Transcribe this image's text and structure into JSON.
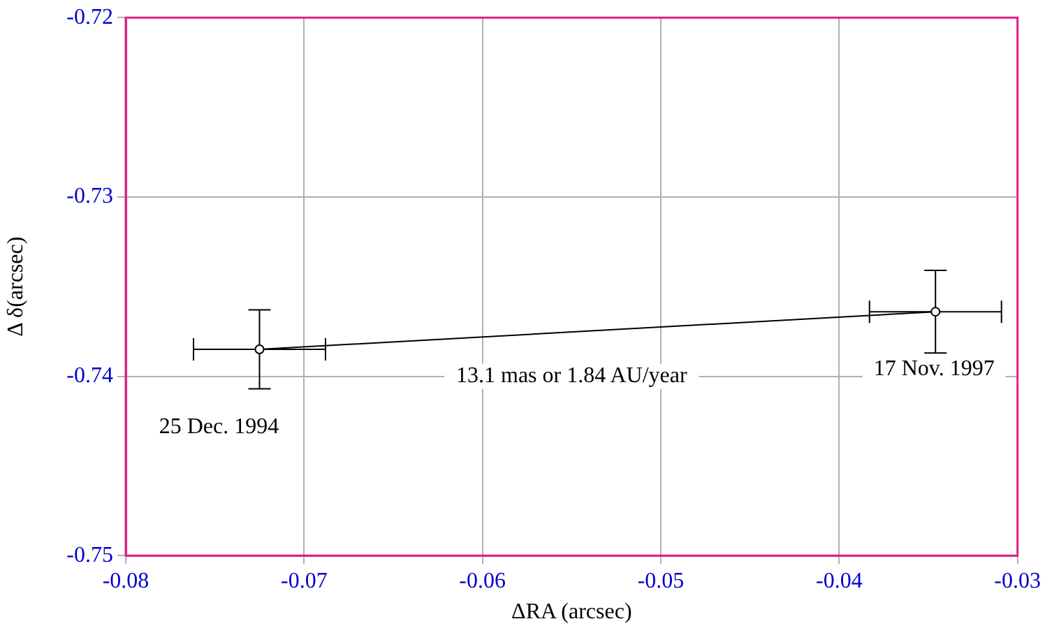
{
  "chart_data": {
    "type": "line",
    "xlabel": "ΔRA (arcsec)",
    "ylabel": "Δ δ(arcsec)",
    "x": [
      -0.0725,
      -0.0346
    ],
    "values": [
      -0.7385,
      -0.7364
    ],
    "errors": [
      0.0022,
      0.0023
    ],
    "xerrors": [
      0.0037,
      0.0037
    ],
    "color": "#000000",
    "marker": "circle",
    "line_style": "solid",
    "xlim": [
      -0.08,
      -0.03
    ],
    "xticks": [
      -0.08,
      -0.07,
      -0.06,
      -0.05,
      -0.04,
      -0.03
    ],
    "ylim": [
      -0.75,
      -0.72
    ],
    "yticks": [
      -0.75,
      -0.74,
      -0.73,
      -0.72
    ],
    "grid": true,
    "legend": false,
    "annotations": [
      {
        "text": "25 Dec. 1994",
        "x": -0.0725,
        "y": -0.7385
      },
      {
        "text": "17 Nov. 1997",
        "x": -0.0346,
        "y": -0.7364
      },
      "13.1 mas or 1.84 AU/year"
    ]
  }
}
